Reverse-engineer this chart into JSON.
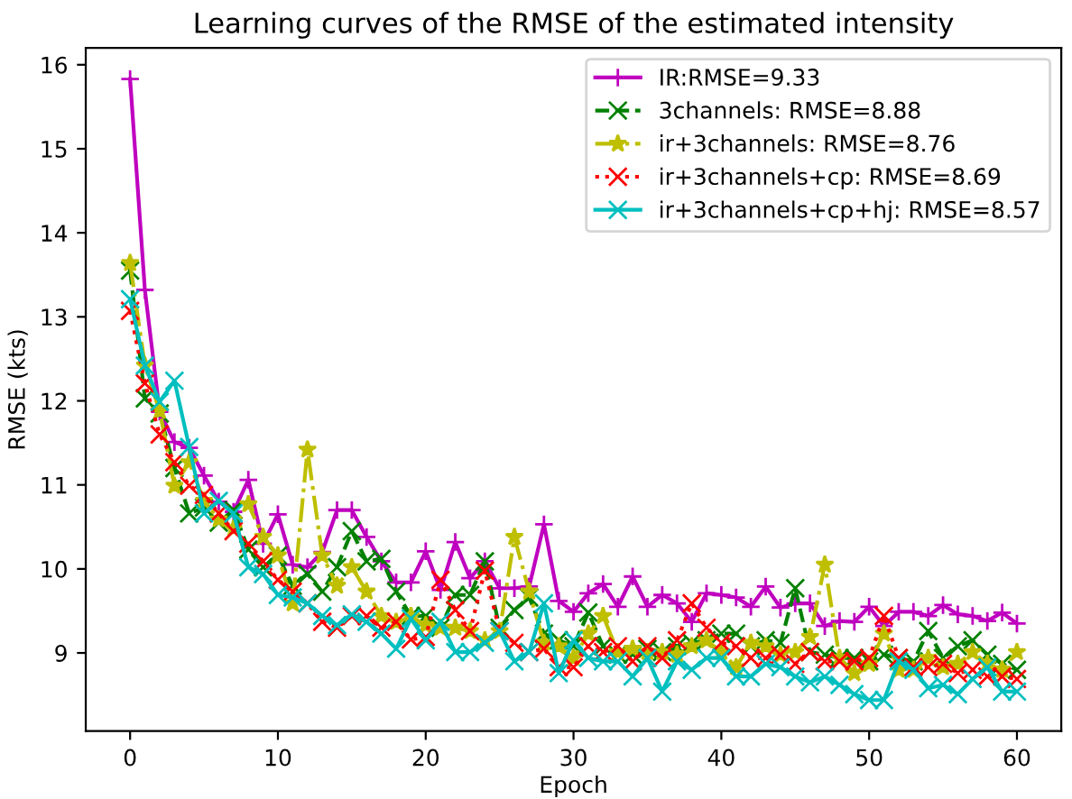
{
  "chart_data": {
    "type": "line",
    "title": "Learning curves of the RMSE of the estimated intensity",
    "xlabel": "Epoch",
    "ylabel": "RMSE (kts)",
    "x": [
      0,
      1,
      2,
      3,
      4,
      5,
      6,
      7,
      8,
      9,
      10,
      11,
      12,
      13,
      14,
      15,
      16,
      17,
      18,
      19,
      20,
      21,
      22,
      23,
      24,
      25,
      26,
      27,
      28,
      29,
      30,
      31,
      32,
      33,
      34,
      35,
      36,
      37,
      38,
      39,
      40,
      41,
      42,
      43,
      44,
      45,
      46,
      47,
      48,
      49,
      50,
      51,
      52,
      53,
      54,
      55,
      56,
      57,
      58,
      59,
      60
    ],
    "xlim": [
      -3,
      63
    ],
    "xticks": [
      0,
      10,
      20,
      30,
      40,
      50,
      60
    ],
    "ylim": [
      8.07,
      16.2
    ],
    "yticks": [
      9,
      10,
      11,
      12,
      13,
      14,
      15,
      16
    ],
    "grid": false,
    "legend": "top right",
    "series": [
      {
        "name": "IR:RMSE=9.33",
        "color": "#bf00bf",
        "line_style": "solid",
        "marker": "plus",
        "values": [
          15.83,
          13.32,
          11.87,
          11.51,
          11.44,
          11.11,
          10.8,
          10.68,
          11.06,
          10.3,
          10.65,
          10.05,
          10.02,
          10.2,
          10.7,
          10.7,
          10.38,
          10.09,
          9.84,
          9.84,
          10.21,
          9.75,
          10.32,
          9.89,
          10.09,
          9.77,
          9.77,
          9.79,
          10.53,
          9.62,
          9.49,
          9.71,
          9.82,
          9.55,
          9.91,
          9.55,
          9.69,
          9.59,
          9.37,
          9.71,
          9.69,
          9.66,
          9.55,
          9.79,
          9.54,
          9.59,
          9.59,
          9.32,
          9.38,
          9.37,
          9.55,
          9.32,
          9.49,
          9.49,
          9.44,
          9.57,
          9.46,
          9.44,
          9.38,
          9.48,
          9.35
        ]
      },
      {
        "name": "3channels: RMSE=8.88",
        "color": "#008000",
        "line_style": "dashed",
        "marker": "cross",
        "values": [
          13.55,
          12.03,
          11.85,
          11.2,
          10.66,
          10.73,
          10.55,
          10.7,
          10.23,
          10.02,
          10.16,
          9.8,
          9.94,
          9.73,
          10.02,
          10.45,
          10.09,
          10.12,
          9.73,
          9.44,
          9.44,
          9.3,
          9.69,
          9.69,
          10.09,
          9.3,
          9.51,
          9.66,
          9.23,
          9.15,
          9.08,
          9.48,
          9.08,
          8.98,
          8.98,
          9.05,
          9.01,
          9.08,
          9.12,
          9.15,
          9.23,
          9.23,
          9.08,
          9.15,
          9.12,
          9.77,
          9.01,
          8.98,
          8.94,
          8.94,
          8.9,
          8.98,
          8.94,
          8.9,
          9.26,
          8.94,
          9.08,
          9.15,
          8.98,
          8.87,
          8.8
        ]
      },
      {
        "name": "ir+3channels: RMSE=8.76",
        "color": "#bfbf00",
        "line_style": "dashdot",
        "marker": "star",
        "values": [
          13.64,
          12.42,
          11.88,
          10.99,
          11.27,
          10.81,
          10.59,
          10.48,
          10.77,
          10.38,
          10.16,
          9.59,
          11.42,
          10.16,
          9.8,
          10.02,
          9.73,
          9.44,
          9.37,
          9.44,
          9.33,
          9.3,
          9.3,
          9.26,
          9.15,
          9.26,
          10.38,
          9.73,
          9.12,
          9.08,
          8.94,
          9.23,
          9.44,
          9.01,
          9.05,
          9.01,
          9.01,
          8.98,
          9.08,
          9.15,
          9.01,
          8.83,
          9.12,
          9.08,
          8.98,
          9.01,
          9.19,
          10.05,
          8.94,
          8.76,
          8.87,
          9.23,
          8.8,
          8.8,
          8.94,
          8.83,
          8.87,
          9.01,
          8.87,
          8.8,
          9.01
        ]
      },
      {
        "name": "ir+3channels+cp: RMSE=8.69",
        "color": "#ff0000",
        "line_style": "dotted",
        "marker": "cross",
        "values": [
          13.07,
          12.21,
          11.6,
          11.27,
          10.99,
          10.88,
          10.66,
          10.45,
          10.3,
          10.09,
          9.87,
          9.73,
          9.59,
          9.37,
          9.3,
          9.44,
          9.44,
          9.3,
          9.37,
          9.16,
          9.19,
          9.87,
          9.51,
          9.26,
          9.98,
          9.26,
          9.12,
          9.01,
          9.05,
          8.83,
          8.83,
          9.08,
          9.01,
          9.08,
          8.9,
          9.08,
          8.94,
          9.15,
          9.59,
          9.3,
          9.12,
          9.08,
          8.94,
          8.94,
          8.98,
          8.87,
          9.01,
          8.9,
          8.9,
          8.9,
          8.94,
          9.44,
          8.94,
          8.83,
          8.83,
          8.87,
          8.76,
          8.8,
          8.72,
          8.72,
          8.69
        ]
      },
      {
        "name": "ir+3channels+cp+hj: RMSE=8.57",
        "color": "#00bfbf",
        "line_style": "solid",
        "marker": "cross",
        "values": [
          13.21,
          12.42,
          11.99,
          12.24,
          11.45,
          10.66,
          10.81,
          10.66,
          10.02,
          9.94,
          9.69,
          9.66,
          9.59,
          9.44,
          9.33,
          9.46,
          9.37,
          9.23,
          9.05,
          9.41,
          9.15,
          9.37,
          9.01,
          9.01,
          9.12,
          9.26,
          8.9,
          9.01,
          9.59,
          8.76,
          9.15,
          8.94,
          8.9,
          8.9,
          8.72,
          8.94,
          8.54,
          8.9,
          8.8,
          8.94,
          8.94,
          8.72,
          8.72,
          8.87,
          8.83,
          8.72,
          8.65,
          8.72,
          8.62,
          8.51,
          8.44,
          8.44,
          8.9,
          8.8,
          8.58,
          8.62,
          8.51,
          8.69,
          8.83,
          8.54,
          8.54
        ]
      }
    ]
  }
}
